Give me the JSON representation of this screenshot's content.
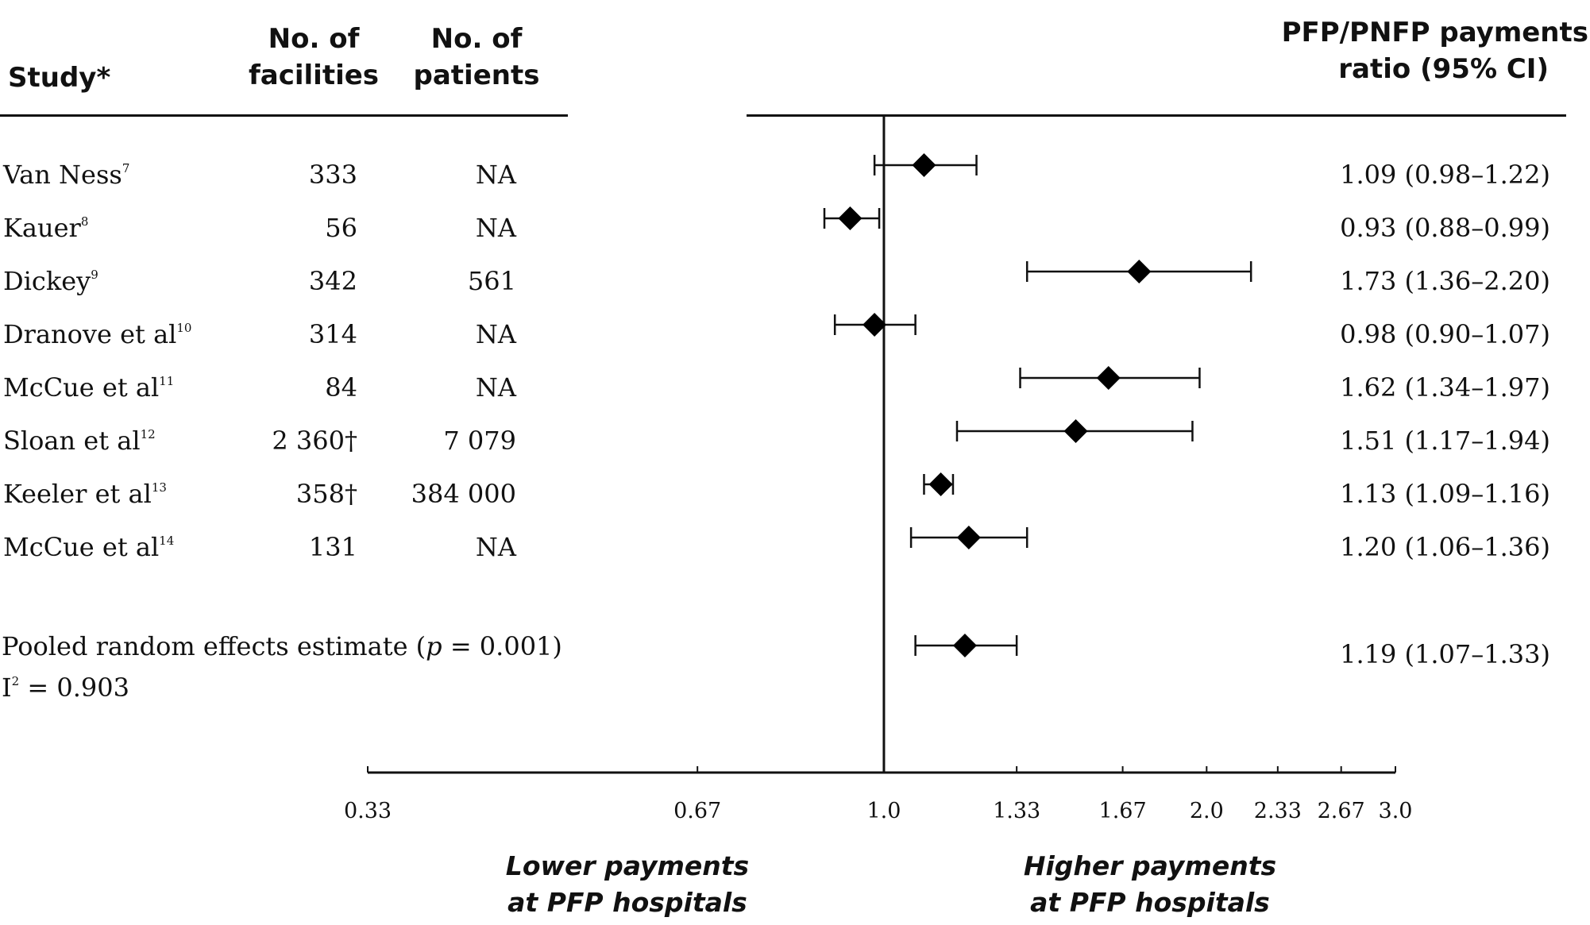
{
  "headers": {
    "study": "Study*",
    "facilities": [
      "No. of",
      "facilities"
    ],
    "patients": [
      "No. of",
      "patients"
    ],
    "ratio": [
      "PFP/PNFP payments",
      "ratio (95% CI)"
    ]
  },
  "rows": [
    {
      "name": "Van Ness",
      "ref": "7",
      "facilities": "333",
      "patients": "NA",
      "ci_text": "1.09 (0.98–1.22)"
    },
    {
      "name": "Kauer",
      "ref": "8",
      "facilities": "56",
      "patients": "NA",
      "ci_text": "0.93 (0.88–0.99)"
    },
    {
      "name": "Dickey",
      "ref": "9",
      "facilities": "342",
      "patients": "561",
      "ci_text": "1.73 (1.36–2.20)"
    },
    {
      "name": "Dranove et al",
      "ref": "10",
      "facilities": "314",
      "patients": "NA",
      "ci_text": "0.98 (0.90–1.07)"
    },
    {
      "name": "McCue et al",
      "ref": "11",
      "facilities": "84",
      "patients": "NA",
      "ci_text": "1.62 (1.34–1.97)"
    },
    {
      "name": "Sloan et al",
      "ref": "12",
      "facilities": "2 360†",
      "patients": "7 079",
      "ci_text": "1.51 (1.17–1.94)"
    },
    {
      "name": "Keeler et al",
      "ref": "13",
      "facilities": "358†",
      "patients": "384 000",
      "ci_text": "1.13 (1.09–1.16)"
    },
    {
      "name": "McCue et al",
      "ref": "14",
      "facilities": "131",
      "patients": "NA",
      "ci_text": "1.20 (1.06–1.36)"
    }
  ],
  "pooled": {
    "label_before": "Pooled random effects estimate (",
    "p_symbol": "p",
    "label_after": " = 0.001)",
    "i2_base": "I",
    "i2_sup": "2",
    "i2_value": " = 0.903",
    "ci_text": "1.19 (1.07–1.33)"
  },
  "direction_labels": {
    "lower": [
      "Lower payments",
      "at PFP hospitals"
    ],
    "higher": [
      "Higher payments",
      "at PFP hospitals"
    ]
  },
  "chart_data": {
    "type": "forest",
    "scale": "log",
    "xlim": [
      0.33,
      3.0
    ],
    "reference_line": 1.0,
    "x_ticks": [
      0.33,
      0.67,
      1.0,
      1.33,
      1.67,
      2.0,
      2.33,
      2.67,
      3.0
    ],
    "x_tick_labels": [
      "0.33",
      "0.67",
      "1.0",
      "1.33",
      "1.67",
      "2.0",
      "2.33",
      "2.67",
      "3.0"
    ],
    "xlabel": "PFP/PNFP payments ratio (95% CI)",
    "series": [
      {
        "name": "Van Ness",
        "estimate": 1.09,
        "lower": 0.98,
        "upper": 1.22
      },
      {
        "name": "Kauer",
        "estimate": 0.93,
        "lower": 0.88,
        "upper": 0.99
      },
      {
        "name": "Dickey",
        "estimate": 1.73,
        "lower": 1.36,
        "upper": 2.2
      },
      {
        "name": "Dranove et al",
        "estimate": 0.98,
        "lower": 0.9,
        "upper": 1.07
      },
      {
        "name": "McCue et al (11)",
        "estimate": 1.62,
        "lower": 1.34,
        "upper": 1.97
      },
      {
        "name": "Sloan et al",
        "estimate": 1.51,
        "lower": 1.17,
        "upper": 1.94
      },
      {
        "name": "Keeler et al",
        "estimate": 1.13,
        "lower": 1.09,
        "upper": 1.16
      },
      {
        "name": "McCue et al (14)",
        "estimate": 1.2,
        "lower": 1.06,
        "upper": 1.36
      },
      {
        "name": "Pooled",
        "estimate": 1.19,
        "lower": 1.07,
        "upper": 1.33
      }
    ]
  }
}
